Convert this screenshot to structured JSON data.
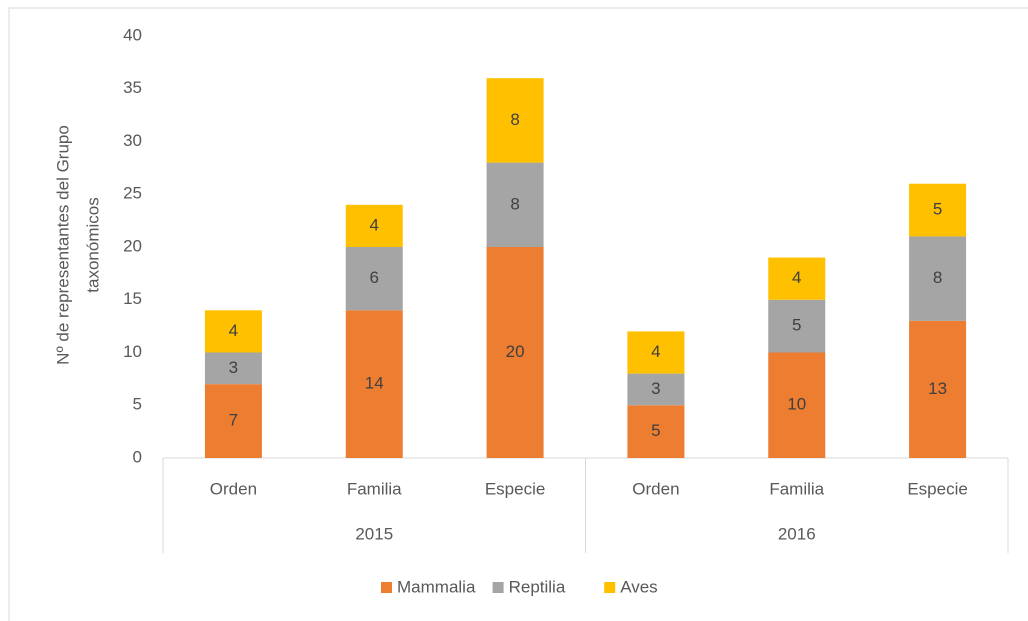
{
  "chart_data": {
    "type": "stacked_bar",
    "ylabel": [
      "Nº de representantes del Grupo",
      "taxonómicos"
    ],
    "groups": [
      {
        "name": "2015",
        "categories": [
          "Orden",
          "Familia",
          "Especie"
        ]
      },
      {
        "name": "2016",
        "categories": [
          "Orden",
          "Familia",
          "Especie"
        ]
      }
    ],
    "series": [
      {
        "name": "Mammalia",
        "color": "#ed7d31",
        "values": [
          7,
          14,
          20,
          5,
          10,
          13
        ]
      },
      {
        "name": "Reptilia",
        "color": "#a5a5a5",
        "values": [
          3,
          6,
          8,
          3,
          5,
          8
        ]
      },
      {
        "name": "Aves",
        "color": "#ffc000",
        "values": [
          4,
          4,
          8,
          4,
          4,
          5
        ]
      }
    ],
    "ylim": [
      0,
      40
    ],
    "yticks": [
      0,
      5,
      10,
      15,
      20,
      25,
      30,
      35,
      40
    ],
    "grid": false,
    "legend": "bottom"
  }
}
